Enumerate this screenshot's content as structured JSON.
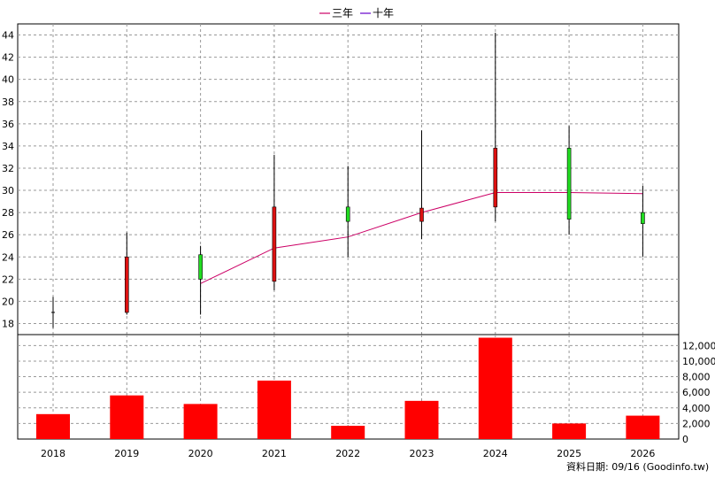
{
  "chart_data": [
    {
      "type": "candlestick",
      "categories": [
        "2018",
        "2019",
        "2020",
        "2021",
        "2022",
        "2023",
        "2024",
        "2025",
        "2026"
      ],
      "candles": [
        {
          "x": "2018",
          "open": 19.0,
          "close": 19.0,
          "high": 20.4,
          "low": 17.6
        },
        {
          "x": "2019",
          "open": 19.0,
          "close": 24.0,
          "high": 26.2,
          "low": 18.8
        },
        {
          "x": "2020",
          "open": 24.2,
          "close": 22.0,
          "high": 25.0,
          "low": 18.8
        },
        {
          "x": "2021",
          "open": 21.8,
          "close": 28.5,
          "high": 33.2,
          "low": 21.0
        },
        {
          "x": "2022",
          "open": 28.5,
          "close": 27.2,
          "high": 32.2,
          "low": 24.0
        },
        {
          "x": "2023",
          "open": 27.2,
          "close": 28.4,
          "high": 35.4,
          "low": 25.6
        },
        {
          "x": "2024",
          "open": 28.5,
          "close": 33.8,
          "high": 44.2,
          "low": 27.2
        },
        {
          "x": "2025",
          "open": 33.8,
          "close": 27.4,
          "high": 35.8,
          "low": 26.0
        },
        {
          "x": "2026",
          "open": 28.0,
          "close": 27.0,
          "high": 30.4,
          "low": 24.0
        }
      ],
      "series": [
        {
          "name": "三年",
          "color": "#cc0066",
          "points": [
            [
              "2020",
              21.6
            ],
            [
              "2021",
              24.8
            ],
            [
              "2022",
              25.8
            ],
            [
              "2023",
              28.0
            ],
            [
              "2024",
              29.8
            ],
            [
              "2025",
              29.8
            ],
            [
              "2026",
              29.7
            ]
          ]
        },
        {
          "name": "十年",
          "color": "#6600cc",
          "points": []
        }
      ],
      "up_color": "#dd1111",
      "down_color": "#22dd22",
      "yticks": [
        18,
        20,
        22,
        24,
        26,
        28,
        30,
        32,
        34,
        36,
        38,
        40,
        42,
        44
      ],
      "ylim": [
        17,
        45
      ],
      "legend": "top-center"
    },
    {
      "type": "bar",
      "categories": [
        "2018",
        "2019",
        "2020",
        "2021",
        "2022",
        "2023",
        "2024",
        "2025",
        "2026"
      ],
      "values": [
        3200,
        5600,
        4500,
        7500,
        1700,
        4900,
        13000,
        2000,
        3000
      ],
      "color": "#ff0000",
      "yticks": [
        0,
        2000,
        4000,
        6000,
        8000,
        10000,
        12000
      ],
      "ytick_labels": [
        "0",
        "2,000",
        "4,000",
        "6,000",
        "8,000",
        "10,000",
        "12,000"
      ],
      "ylim": [
        0,
        13400
      ]
    }
  ],
  "legend": {
    "items": [
      {
        "label": "三年",
        "color": "#cc0066"
      },
      {
        "label": "十年",
        "color": "#6600cc"
      }
    ]
  },
  "footer": {
    "source": "資料日期: 09/16 (Goodinfo.tw)"
  }
}
